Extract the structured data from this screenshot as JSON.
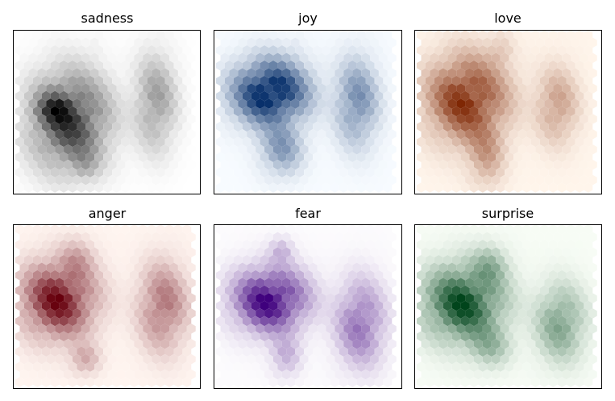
{
  "chart_data": [
    {
      "type": "hexbin",
      "title": "sadness",
      "colormap": "Greys",
      "colors": [
        "#ffffff",
        "#000000"
      ],
      "clusters": [
        {
          "x": 0.3,
          "y": 0.55,
          "sx": 0.13,
          "sy": 0.18,
          "n": 260
        },
        {
          "x": 0.22,
          "y": 0.48,
          "sx": 0.06,
          "sy": 0.06,
          "n": 120
        },
        {
          "x": 0.38,
          "y": 0.82,
          "sx": 0.05,
          "sy": 0.06,
          "n": 50
        },
        {
          "x": 0.76,
          "y": 0.44,
          "sx": 0.07,
          "sy": 0.18,
          "n": 110
        },
        {
          "x": 0.44,
          "y": 0.1,
          "sx": 0.02,
          "sy": 0.04,
          "n": 10
        }
      ]
    },
    {
      "type": "hexbin",
      "title": "joy",
      "colormap": "Blues",
      "colors": [
        "#f7fbff",
        "#08306b"
      ],
      "clusters": [
        {
          "x": 0.3,
          "y": 0.38,
          "sx": 0.12,
          "sy": 0.12,
          "n": 280
        },
        {
          "x": 0.36,
          "y": 0.72,
          "sx": 0.07,
          "sy": 0.1,
          "n": 90
        },
        {
          "x": 0.76,
          "y": 0.44,
          "sx": 0.07,
          "sy": 0.16,
          "n": 110
        },
        {
          "x": 0.44,
          "y": 0.1,
          "sx": 0.02,
          "sy": 0.04,
          "n": 10
        }
      ]
    },
    {
      "type": "hexbin",
      "title": "love",
      "colormap": "Oranges",
      "colors": [
        "#fff5eb",
        "#7f2704"
      ],
      "clusters": [
        {
          "x": 0.28,
          "y": 0.42,
          "sx": 0.13,
          "sy": 0.16,
          "n": 250
        },
        {
          "x": 0.38,
          "y": 0.76,
          "sx": 0.06,
          "sy": 0.12,
          "n": 80
        },
        {
          "x": 0.46,
          "y": 0.12,
          "sx": 0.04,
          "sy": 0.06,
          "n": 40
        },
        {
          "x": 0.76,
          "y": 0.46,
          "sx": 0.07,
          "sy": 0.14,
          "n": 90
        }
      ]
    },
    {
      "type": "hexbin",
      "title": "anger",
      "colormap": "Reds",
      "colors": [
        "#fff5f0",
        "#67000d"
      ],
      "clusters": [
        {
          "x": 0.24,
          "y": 0.46,
          "sx": 0.12,
          "sy": 0.14,
          "n": 240
        },
        {
          "x": 0.38,
          "y": 0.82,
          "sx": 0.05,
          "sy": 0.06,
          "n": 60
        },
        {
          "x": 0.34,
          "y": 0.22,
          "sx": 0.06,
          "sy": 0.08,
          "n": 50
        },
        {
          "x": 0.8,
          "y": 0.5,
          "sx": 0.08,
          "sy": 0.16,
          "n": 120
        }
      ]
    },
    {
      "type": "hexbin",
      "title": "fear",
      "colormap": "Purples",
      "colors": [
        "#fcfbfd",
        "#3f007d"
      ],
      "clusters": [
        {
          "x": 0.3,
          "y": 0.46,
          "sx": 0.12,
          "sy": 0.12,
          "n": 230
        },
        {
          "x": 0.36,
          "y": 0.16,
          "sx": 0.04,
          "sy": 0.05,
          "n": 40
        },
        {
          "x": 0.38,
          "y": 0.8,
          "sx": 0.05,
          "sy": 0.08,
          "n": 50
        },
        {
          "x": 0.78,
          "y": 0.6,
          "sx": 0.08,
          "sy": 0.16,
          "n": 110
        }
      ]
    },
    {
      "type": "hexbin",
      "title": "surprise",
      "colormap": "Greens",
      "colors": [
        "#f7fcf5",
        "#00441b"
      ],
      "clusters": [
        {
          "x": 0.26,
          "y": 0.48,
          "sx": 0.13,
          "sy": 0.14,
          "n": 220
        },
        {
          "x": 0.4,
          "y": 0.26,
          "sx": 0.06,
          "sy": 0.08,
          "n": 60
        },
        {
          "x": 0.4,
          "y": 0.74,
          "sx": 0.07,
          "sy": 0.08,
          "n": 60
        },
        {
          "x": 0.78,
          "y": 0.6,
          "sx": 0.08,
          "sy": 0.14,
          "n": 100
        }
      ]
    }
  ]
}
